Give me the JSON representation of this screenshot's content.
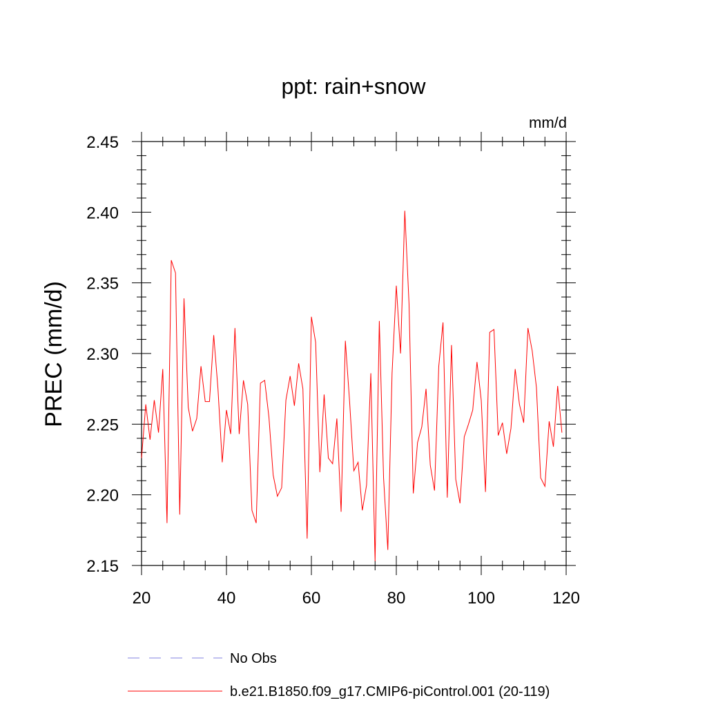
{
  "chart_data": {
    "type": "line",
    "title": "ppt: rain+snow",
    "units_label": "mm/d",
    "ylabel": "PREC  (mm/d)",
    "xlabel": "",
    "xlim": [
      20,
      120
    ],
    "ylim": [
      2.15,
      2.45
    ],
    "x_ticks": [
      "20",
      "40",
      "60",
      "80",
      "100",
      "120"
    ],
    "y_ticks": [
      "2.15",
      "2.20",
      "2.25",
      "2.30",
      "2.35",
      "2.40",
      "2.45"
    ],
    "grid": false,
    "legend_position": "bottom",
    "series": [
      {
        "name": "No Obs",
        "color": "#8080e0",
        "dashed": true,
        "x": [],
        "values": []
      },
      {
        "name": "b.e21.B1850.f09_g17.CMIP6-piControl.001 (20-119)",
        "color": "#ff0000",
        "dashed": false,
        "x": [
          20,
          21,
          22,
          23,
          24,
          25,
          26,
          27,
          28,
          29,
          30,
          31,
          32,
          33,
          34,
          35,
          36,
          37,
          38,
          39,
          40,
          41,
          42,
          43,
          44,
          45,
          46,
          47,
          48,
          49,
          50,
          51,
          52,
          53,
          54,
          55,
          56,
          57,
          58,
          59,
          60,
          61,
          62,
          63,
          64,
          65,
          66,
          67,
          68,
          69,
          70,
          71,
          72,
          73,
          74,
          75,
          76,
          77,
          78,
          79,
          80,
          81,
          82,
          83,
          84,
          85,
          86,
          87,
          88,
          89,
          90,
          91,
          92,
          93,
          94,
          95,
          96,
          97,
          98,
          99,
          100,
          101,
          102,
          103,
          104,
          105,
          106,
          107,
          108,
          109,
          110,
          111,
          112,
          113,
          114,
          115,
          116,
          117,
          118,
          119
        ],
        "values": [
          2.226,
          2.264,
          2.239,
          2.267,
          2.244,
          2.289,
          2.18,
          2.366,
          2.357,
          2.186,
          2.339,
          2.262,
          2.245,
          2.254,
          2.291,
          2.266,
          2.266,
          2.313,
          2.275,
          2.223,
          2.26,
          2.243,
          2.318,
          2.243,
          2.281,
          2.264,
          2.189,
          2.18,
          2.279,
          2.281,
          2.255,
          2.214,
          2.199,
          2.205,
          2.267,
          2.284,
          2.263,
          2.293,
          2.275,
          2.169,
          2.326,
          2.308,
          2.216,
          2.271,
          2.226,
          2.222,
          2.254,
          2.188,
          2.309,
          2.266,
          2.217,
          2.223,
          2.189,
          2.207,
          2.286,
          2.153,
          2.323,
          2.212,
          2.161,
          2.286,
          2.348,
          2.3,
          2.401,
          2.335,
          2.201,
          2.237,
          2.248,
          2.275,
          2.221,
          2.203,
          2.291,
          2.322,
          2.198,
          2.306,
          2.211,
          2.194,
          2.241,
          2.25,
          2.26,
          2.294,
          2.267,
          2.202,
          2.315,
          2.317,
          2.242,
          2.251,
          2.229,
          2.247,
          2.289,
          2.264,
          2.251,
          2.318,
          2.302,
          2.276,
          2.212,
          2.206,
          2.252,
          2.234,
          2.277,
          2.244
        ]
      }
    ]
  }
}
